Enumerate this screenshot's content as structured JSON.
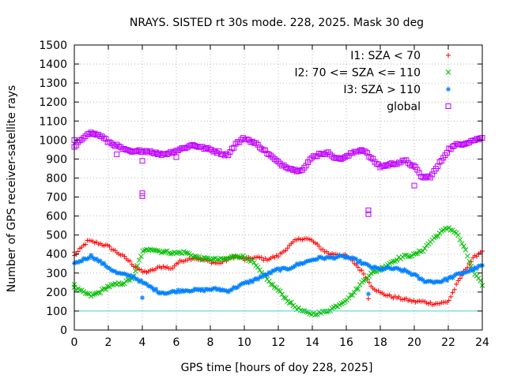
{
  "chart_data": {
    "type": "scatter",
    "title": "NRAYS. SISTED rt 30s mode. 228, 2025. Mask 30 deg",
    "xlabel": "GPS time [hours of doy 228, 2025]",
    "ylabel": "Number of GPS receiver-satellite rays",
    "xlim": [
      0,
      24
    ],
    "ylim": [
      0,
      1500
    ],
    "xticks": [
      "0",
      "2",
      "4",
      "6",
      "8",
      "10",
      "12",
      "14",
      "16",
      "18",
      "20",
      "22",
      "24"
    ],
    "yticks": [
      "0",
      "100",
      "200",
      "300",
      "400",
      "500",
      "600",
      "700",
      "800",
      "900",
      "1000",
      "1100",
      "1200",
      "1300",
      "1400",
      "1500"
    ],
    "grid": true,
    "legend_position": "top-right",
    "reference_line": {
      "y": 100,
      "color": "#40d0d0"
    },
    "series": [
      {
        "name": "I1: SZA < 70",
        "marker": "+",
        "color": "#ff0000",
        "x": [
          0,
          0.5,
          0.8,
          1.0,
          1.5,
          2.0,
          2.5,
          3.0,
          3.5,
          4.0,
          4.5,
          5.0,
          5.3,
          5.7,
          6.0,
          6.5,
          7.0,
          7.5,
          8.0,
          8.5,
          9.0,
          9.5,
          10.0,
          10.5,
          11.0,
          11.2,
          12.0,
          12.5,
          13.0,
          13.5,
          14.0,
          14.5,
          15.0,
          15.5,
          16.0,
          16.5,
          17.0,
          17.5,
          18.0,
          18.5,
          19.0,
          19.5,
          20.0,
          20.5,
          21.0,
          21.5,
          22.0,
          22.5,
          23.0,
          23.5,
          24.0
        ],
        "y": [
          390,
          440,
          470,
          465,
          455,
          440,
          410,
          380,
          340,
          305,
          310,
          330,
          335,
          320,
          350,
          370,
          380,
          370,
          360,
          350,
          370,
          390,
          370,
          380,
          380,
          370,
          390,
          430,
          470,
          485,
          470,
          430,
          400,
          400,
          390,
          350,
          300,
          230,
          195,
          180,
          170,
          160,
          150,
          150,
          140,
          140,
          150,
          240,
          320,
          380,
          420
        ],
        "outliers": [
          [
            0,
            410
          ],
          [
            17.3,
            165
          ]
        ]
      },
      {
        "name": "I2: 70 <= SZA <= 110",
        "marker": "x",
        "color": "#00c000",
        "x": [
          0,
          0.5,
          1.0,
          1.5,
          2.0,
          2.5,
          3.0,
          3.5,
          3.8,
          4.0,
          4.5,
          5.0,
          5.5,
          6.0,
          6.5,
          7.0,
          7.5,
          8.0,
          8.5,
          9.0,
          9.5,
          10.0,
          10.5,
          11.0,
          11.5,
          12.0,
          12.5,
          13.0,
          13.5,
          14.0,
          14.5,
          15.0,
          15.5,
          16.0,
          16.5,
          17.0,
          17.5,
          18.0,
          18.5,
          19.0,
          19.5,
          20.0,
          20.5,
          21.0,
          21.5,
          22.0,
          22.5,
          23.0,
          23.5,
          24.0
        ],
        "y": [
          220,
          200,
          180,
          200,
          230,
          240,
          250,
          280,
          360,
          410,
          430,
          415,
          410,
          405,
          410,
          390,
          375,
          375,
          370,
          375,
          390,
          385,
          360,
          300,
          250,
          210,
          160,
          120,
          95,
          85,
          90,
          105,
          130,
          160,
          200,
          260,
          300,
          320,
          350,
          375,
          390,
          395,
          420,
          470,
          510,
          540,
          510,
          420,
          300,
          240
        ],
        "outliers": [
          [
            0,
            240
          ]
        ]
      },
      {
        "name": "I3: SZA > 110",
        "marker": "*",
        "color": "#0080ff",
        "x": [
          0,
          0.5,
          1.0,
          1.5,
          2.0,
          2.5,
          3.0,
          3.5,
          4.0,
          4.5,
          5.0,
          5.5,
          6.0,
          6.5,
          7.0,
          7.5,
          8.0,
          8.5,
          9.0,
          9.5,
          10.0,
          10.5,
          11.0,
          11.5,
          12.0,
          12.5,
          13.0,
          13.5,
          14.0,
          14.5,
          15.0,
          15.5,
          16.0,
          16.5,
          17.0,
          17.5,
          18.0,
          18.5,
          19.0,
          19.5,
          20.0,
          20.5,
          21.0,
          21.5,
          22.0,
          22.5,
          23.0,
          23.5,
          24.0
        ],
        "y": [
          350,
          370,
          390,
          360,
          330,
          300,
          290,
          280,
          250,
          225,
          200,
          195,
          205,
          210,
          210,
          210,
          215,
          215,
          205,
          225,
          245,
          260,
          280,
          300,
          320,
          320,
          340,
          355,
          370,
          380,
          380,
          385,
          385,
          370,
          350,
          330,
          320,
          325,
          320,
          310,
          290,
          260,
          255,
          255,
          270,
          290,
          305,
          320,
          340
        ],
        "outliers": [
          [
            4.0,
            170
          ],
          [
            17.3,
            190
          ]
        ]
      },
      {
        "name": "global",
        "marker": "square",
        "color": "#c000ff",
        "x": [
          0,
          0.5,
          0.8,
          1.0,
          1.5,
          2.0,
          2.5,
          3.0,
          3.5,
          4.0,
          4.5,
          5.0,
          5.5,
          6.0,
          6.5,
          7.0,
          7.5,
          8.0,
          8.5,
          9.0,
          9.5,
          10.0,
          10.5,
          11.0,
          11.5,
          12.0,
          12.5,
          13.0,
          13.5,
          14.0,
          14.5,
          15.0,
          15.5,
          16.0,
          16.5,
          17.0,
          17.5,
          18.0,
          18.5,
          19.0,
          19.5,
          20.0,
          20.5,
          21.0,
          21.5,
          22.0,
          22.5,
          23.0,
          23.5,
          24.0
        ],
        "y": [
          960,
          1010,
          1040,
          1035,
          1025,
          990,
          970,
          945,
          935,
          945,
          940,
          925,
          930,
          945,
          960,
          975,
          960,
          950,
          935,
          920,
          980,
          1010,
          990,
          960,
          920,
          880,
          860,
          840,
          850,
          910,
          930,
          930,
          900,
          910,
          940,
          950,
          900,
          860,
          870,
          880,
          890,
          860,
          800,
          810,
          880,
          950,
          975,
          985,
          1000,
          1010
        ],
        "outliers": [
          [
            0,
            1000
          ],
          [
            2.5,
            925
          ],
          [
            4.0,
            890
          ],
          [
            4.0,
            720
          ],
          [
            4.0,
            705
          ],
          [
            6.0,
            910
          ],
          [
            17.3,
            630
          ],
          [
            17.3,
            610
          ],
          [
            20.0,
            760
          ]
        ]
      }
    ]
  }
}
